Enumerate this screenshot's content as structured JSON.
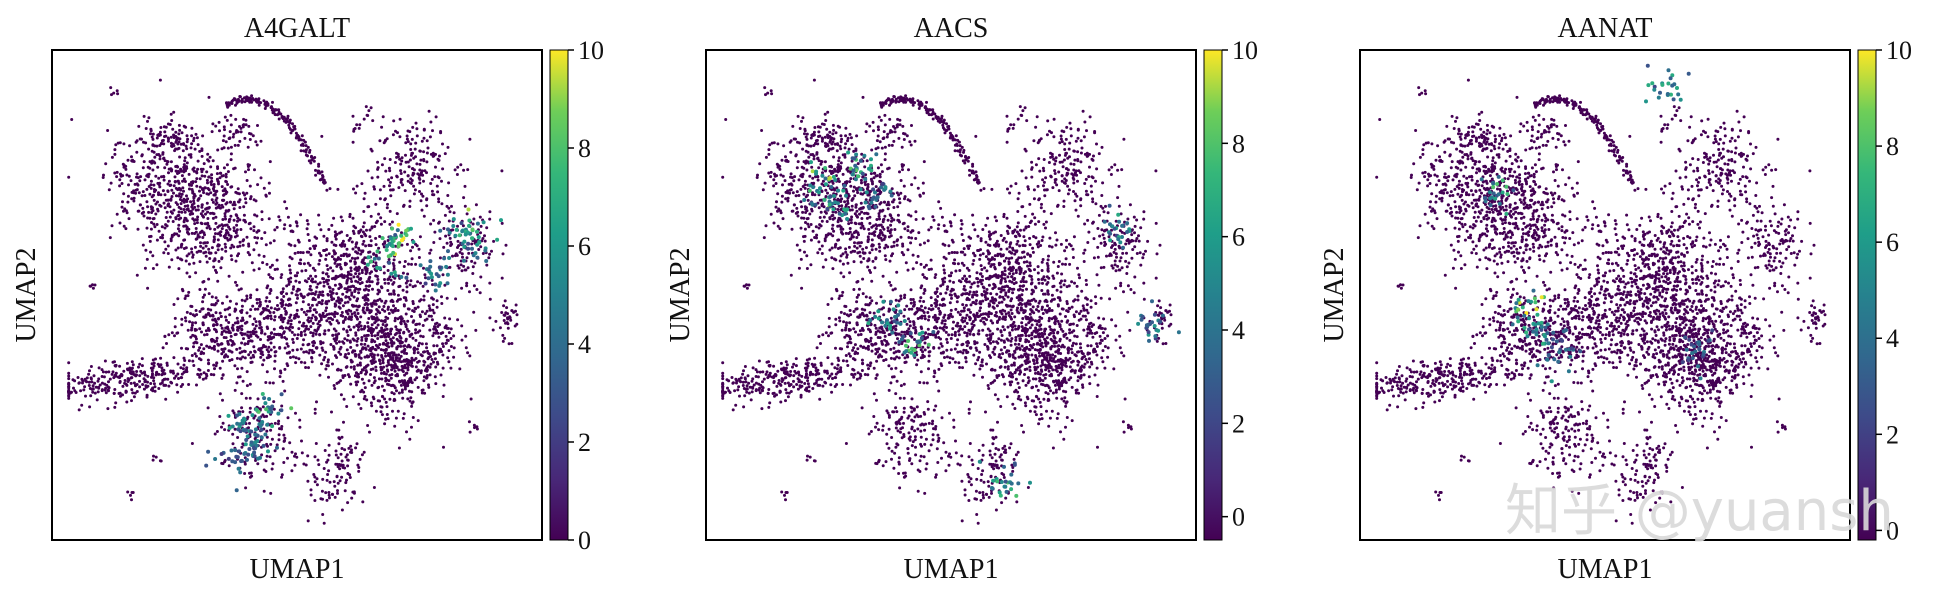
{
  "chart_data": [
    {
      "type": "scatter",
      "title": "A4GALT",
      "xlabel": "UMAP1",
      "ylabel": "UMAP2",
      "colorbar": {
        "ticks": [
          "0",
          "2",
          "4",
          "6",
          "8",
          "10"
        ],
        "range": [
          0,
          10
        ],
        "colormap": "viridis"
      },
      "grid": false,
      "hotspots": [
        {
          "x": 0.72,
          "y": 0.62,
          "value": 9
        },
        {
          "x": 0.69,
          "y": 0.58,
          "value": 7
        },
        {
          "x": 0.86,
          "y": 0.64,
          "value": 8
        },
        {
          "x": 0.88,
          "y": 0.61,
          "value": 6
        },
        {
          "x": 0.39,
          "y": 0.22,
          "value": 6
        },
        {
          "x": 0.41,
          "y": 0.18,
          "value": 5
        },
        {
          "x": 0.44,
          "y": 0.25,
          "value": 7
        },
        {
          "x": 0.37,
          "y": 0.15,
          "value": 4
        },
        {
          "x": 0.8,
          "y": 0.55,
          "value": 5
        }
      ]
    },
    {
      "type": "scatter",
      "title": "AACS",
      "xlabel": "UMAP1",
      "ylabel": "UMAP2",
      "colorbar": {
        "ticks": [
          "0",
          "2",
          "4",
          "6",
          "8",
          "10"
        ],
        "range": [
          -0.5,
          10
        ],
        "colormap": "viridis"
      },
      "grid": false,
      "hotspots": [
        {
          "x": 0.22,
          "y": 0.74,
          "value": 8
        },
        {
          "x": 0.26,
          "y": 0.7,
          "value": 6
        },
        {
          "x": 0.3,
          "y": 0.78,
          "value": 7
        },
        {
          "x": 0.34,
          "y": 0.72,
          "value": 5
        },
        {
          "x": 0.36,
          "y": 0.45,
          "value": 6
        },
        {
          "x": 0.42,
          "y": 0.4,
          "value": 7
        },
        {
          "x": 0.86,
          "y": 0.64,
          "value": 6
        },
        {
          "x": 0.93,
          "y": 0.44,
          "value": 5
        },
        {
          "x": 0.62,
          "y": 0.1,
          "value": 7
        }
      ]
    },
    {
      "type": "scatter",
      "title": "AANAT",
      "xlabel": "UMAP1",
      "ylabel": "UMAP2",
      "colorbar": {
        "ticks": [
          "0",
          "2",
          "4",
          "6",
          "8",
          "10"
        ],
        "range": [
          -0.2,
          10
        ],
        "colormap": "viridis"
      },
      "grid": false,
      "hotspots": [
        {
          "x": 0.33,
          "y": 0.46,
          "value": 9
        },
        {
          "x": 0.36,
          "y": 0.42,
          "value": 6
        },
        {
          "x": 0.4,
          "y": 0.38,
          "value": 5
        },
        {
          "x": 0.26,
          "y": 0.72,
          "value": 7
        },
        {
          "x": 0.63,
          "y": 0.95,
          "value": 6
        },
        {
          "x": 0.7,
          "y": 0.38,
          "value": 4
        }
      ]
    }
  ],
  "watermark": "知乎 @yuansh"
}
